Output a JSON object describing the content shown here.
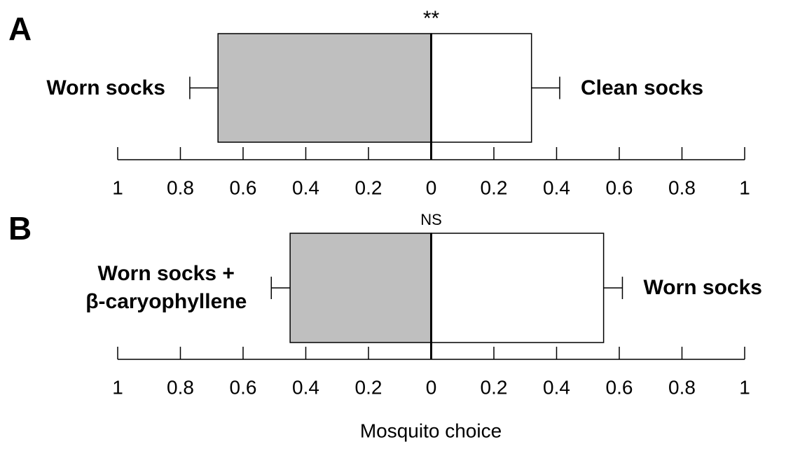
{
  "chart_data": [
    {
      "type": "bar",
      "panel": "A",
      "annotation": "**",
      "series": [
        {
          "name": "Worn socks",
          "color": "#bfbfbf",
          "side": "left",
          "values": [
            0.68
          ],
          "errors": [
            0.09
          ]
        },
        {
          "name": "Clean socks",
          "color": "#ffffff",
          "side": "right",
          "values": [
            0.32
          ],
          "errors": [
            0.09
          ]
        }
      ],
      "xlim": [
        -1,
        1
      ],
      "xticks": [
        {
          "value": -1,
          "label": "1"
        },
        {
          "value": -0.8,
          "label": "0.8"
        },
        {
          "value": -0.6,
          "label": "0.6"
        },
        {
          "value": -0.4,
          "label": "0.4"
        },
        {
          "value": -0.2,
          "label": "0.2"
        },
        0,
        0.2,
        0.4,
        0.6,
        0.8,
        1
      ]
    },
    {
      "type": "bar",
      "panel": "B",
      "annotation": "NS",
      "series": [
        {
          "name": "Worn socks +\nβ-caryophyllene",
          "color": "#bfbfbf",
          "side": "left",
          "values": [
            0.45
          ],
          "errors": [
            0.06
          ]
        },
        {
          "name": "Worn socks",
          "color": "#ffffff",
          "side": "right",
          "values": [
            0.55
          ],
          "errors": [
            0.06
          ]
        }
      ],
      "xlim": [
        -1,
        1
      ],
      "xticks": [
        {
          "value": -1,
          "label": "1"
        },
        {
          "value": -0.8,
          "label": "0.8"
        },
        {
          "value": -0.6,
          "label": "0.6"
        },
        {
          "value": -0.4,
          "label": "0.4"
        },
        {
          "value": -0.2,
          "label": "0.2"
        },
        0,
        0.2,
        0.4,
        0.6,
        0.8,
        1
      ]
    }
  ],
  "xlabel": "Mosquito choice"
}
